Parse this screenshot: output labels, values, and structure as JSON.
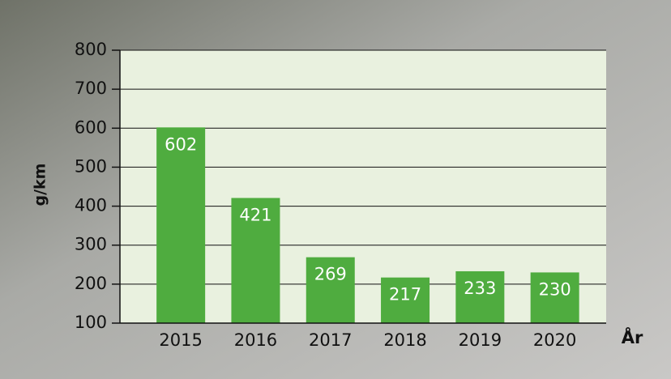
{
  "chart_data": {
    "type": "bar",
    "y_label": "g/km",
    "x_label": "År",
    "categories": [
      "2015",
      "2016",
      "2017",
      "2018",
      "2019",
      "2020"
    ],
    "values": [
      602,
      421,
      269,
      217,
      233,
      230
    ],
    "color": "#4fac3f",
    "ylim": [
      100,
      800
    ],
    "yticks": [
      100,
      200,
      300,
      400,
      500,
      600,
      700,
      800
    ],
    "grid": true
  }
}
